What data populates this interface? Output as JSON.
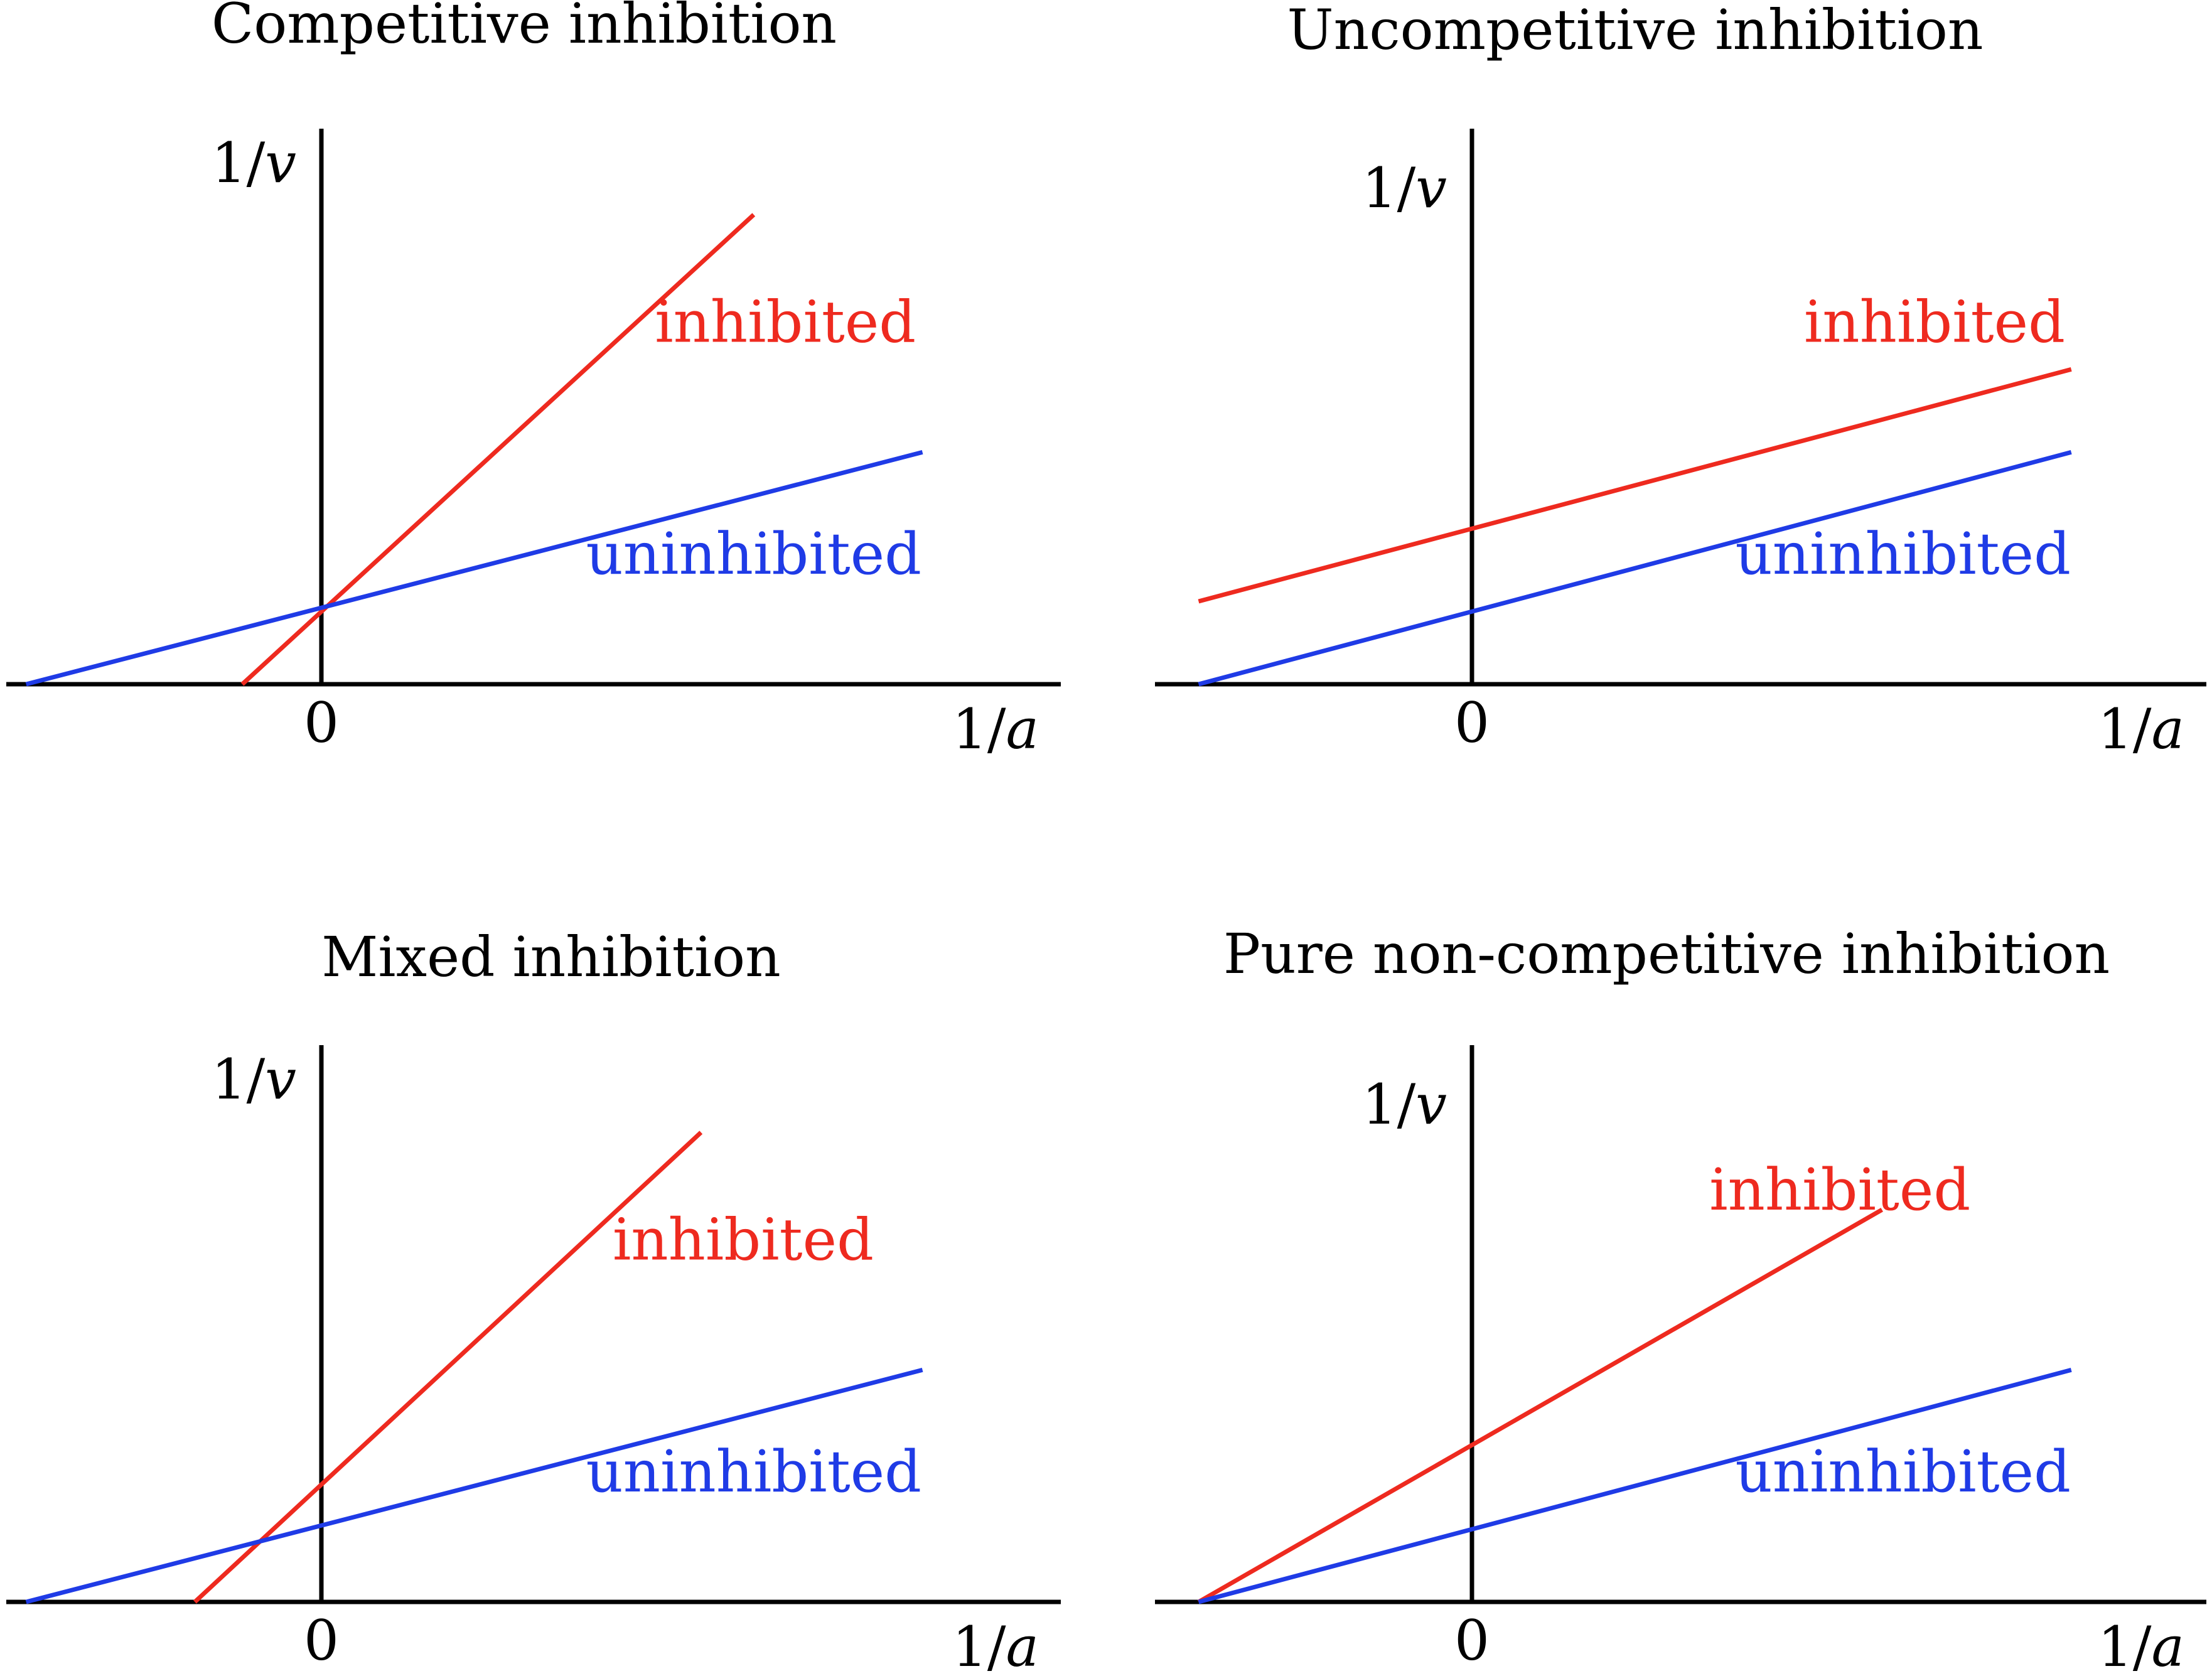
{
  "colors": {
    "inhibited": "#ee2a1f",
    "uninhibited": "#1f3be6",
    "axis": "#000000"
  },
  "chart_data": [
    {
      "type": "line",
      "title": "Competitive inhibition",
      "xlabel_num": "1/",
      "xlabel_var": "a",
      "ylabel_num": "1/",
      "ylabel_var": "v",
      "x_tick_label": "0",
      "xlim": [
        -0.3,
        0.7
      ],
      "ylim": [
        0,
        1
      ],
      "grid": false,
      "series": [
        {
          "name": "inhibited",
          "color": "#ee2a1f",
          "x": [
            -0.075,
            0.41
          ],
          "y": [
            0,
            0.85
          ],
          "label_at": [
            0.44,
            0.62
          ]
        },
        {
          "name": "uninhibited",
          "color": "#1f3be6",
          "x": [
            -0.28,
            0.57
          ],
          "y": [
            0,
            0.42
          ],
          "label_at": [
            0.41,
            0.2
          ]
        }
      ]
    },
    {
      "type": "line",
      "title": "Uncompetitive inhibition",
      "xlabel_num": "1/",
      "xlabel_var": "a",
      "ylabel_num": "1/",
      "ylabel_var": "v",
      "x_tick_label": "0",
      "xlim": [
        -0.3,
        0.7
      ],
      "ylim": [
        0,
        1
      ],
      "grid": false,
      "series": [
        {
          "name": "inhibited",
          "color": "#ee2a1f",
          "x": [
            -0.26,
            0.57
          ],
          "y": [
            0.15,
            0.57
          ],
          "label_at": [
            0.44,
            0.62
          ]
        },
        {
          "name": "uninhibited",
          "color": "#1f3be6",
          "x": [
            -0.26,
            0.57
          ],
          "y": [
            0,
            0.42
          ],
          "label_at": [
            0.41,
            0.2
          ]
        }
      ]
    },
    {
      "type": "line",
      "title": "Mixed inhibition",
      "xlabel_num": "1/",
      "xlabel_var": "a",
      "ylabel_num": "1/",
      "ylabel_var": "v",
      "x_tick_label": "0",
      "xlim": [
        -0.3,
        0.7
      ],
      "ylim": [
        0,
        1
      ],
      "grid": false,
      "series": [
        {
          "name": "inhibited",
          "color": "#ee2a1f",
          "x": [
            -0.12,
            0.36
          ],
          "y": [
            0,
            0.85
          ],
          "label_at": [
            0.4,
            0.62
          ]
        },
        {
          "name": "uninhibited",
          "color": "#1f3be6",
          "x": [
            -0.28,
            0.57
          ],
          "y": [
            0,
            0.42
          ],
          "label_at": [
            0.41,
            0.2
          ]
        }
      ]
    },
    {
      "type": "line",
      "title": "Pure non-competitive inhibition",
      "xlabel_num": "1/",
      "xlabel_var": "a",
      "ylabel_num": "1/",
      "ylabel_var": "v",
      "x_tick_label": "0",
      "xlim": [
        -0.3,
        0.7
      ],
      "ylim": [
        0,
        1
      ],
      "grid": false,
      "series": [
        {
          "name": "inhibited",
          "color": "#ee2a1f",
          "x": [
            -0.26,
            0.39
          ],
          "y": [
            0,
            0.71
          ],
          "label_at": [
            0.35,
            0.71
          ]
        },
        {
          "name": "uninhibited",
          "color": "#1f3be6",
          "x": [
            -0.26,
            0.57
          ],
          "y": [
            0,
            0.42
          ],
          "label_at": [
            0.41,
            0.2
          ]
        }
      ]
    }
  ]
}
